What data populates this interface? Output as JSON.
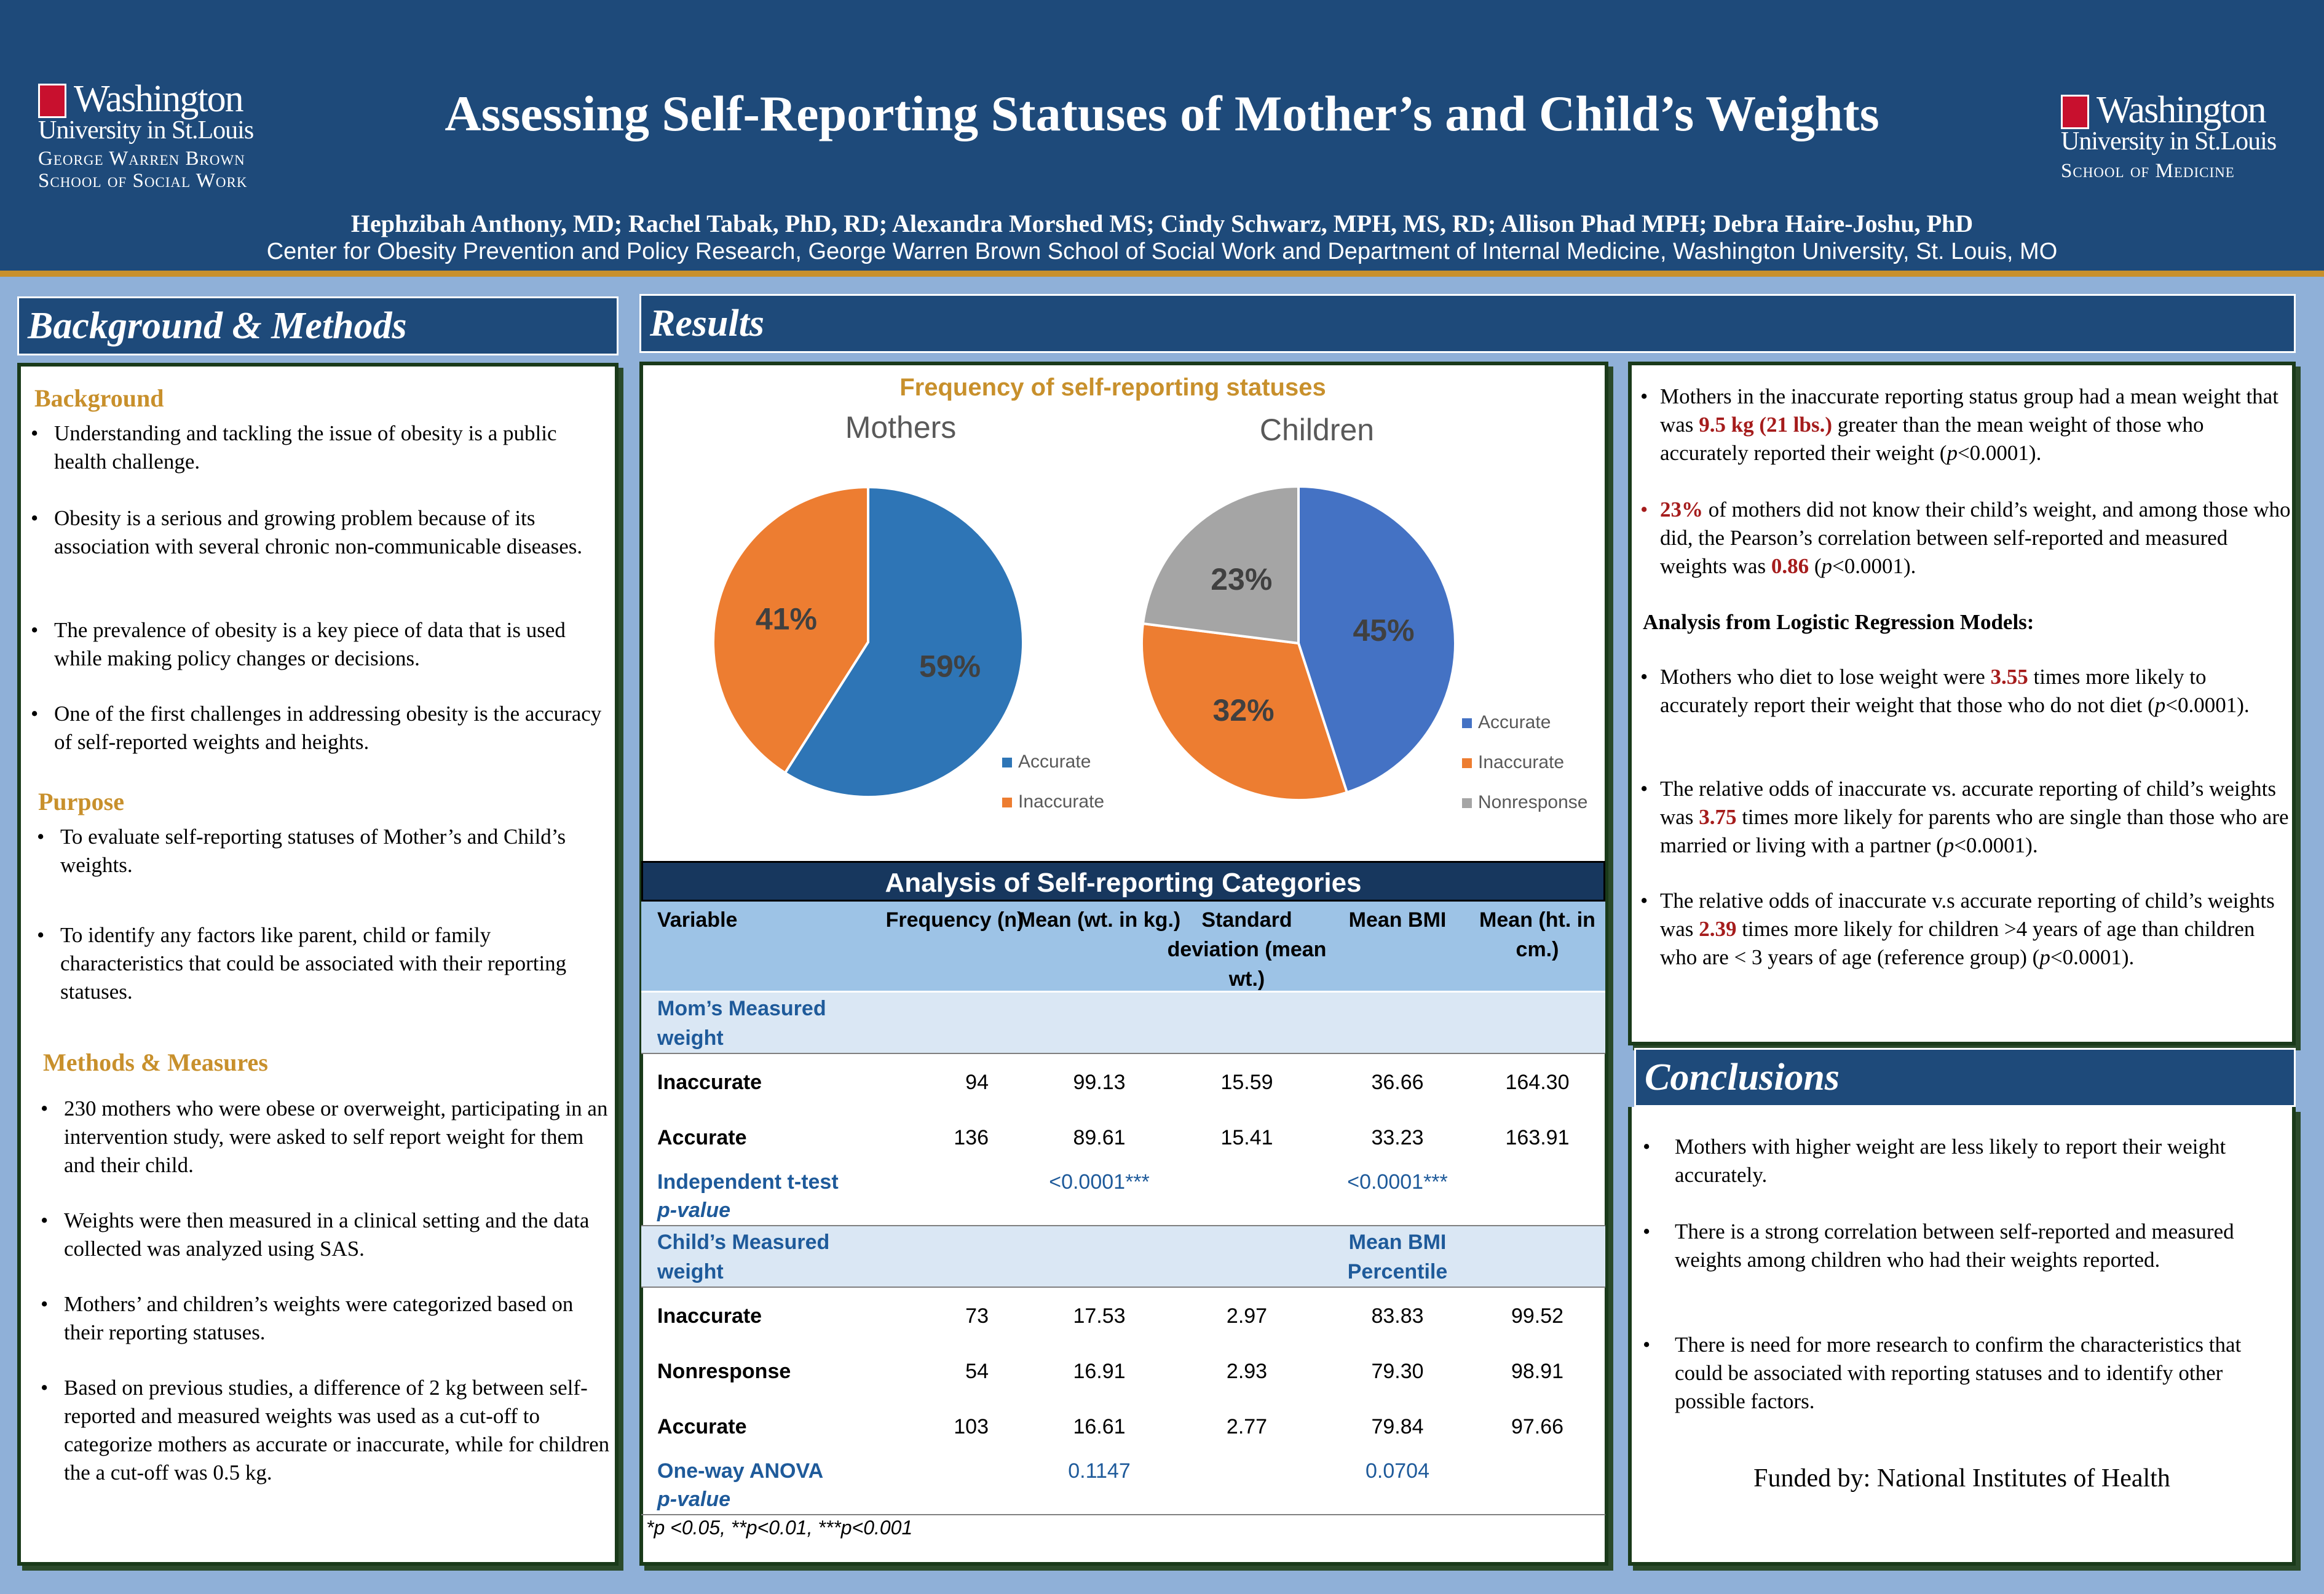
{
  "header": {
    "title": "Assessing Self-Reporting Statuses of Mother’s and Child’s Weights",
    "authors": "Hephzibah Anthony, MD; Rachel Tabak, PhD, RD; Alexandra Morshed MS; Cindy Schwarz, MPH, MS, RD; Allison Phad MPH; Debra Haire-Joshu, PhD",
    "affiliation": "Center for Obesity Prevention and Policy Research, George Warren Brown School of Social Work and Department of Internal Medicine, Washington University, St. Louis, MO",
    "logo_left": {
      "line1": "Washington",
      "line2": "University in St.Louis",
      "line3": "George Warren Brown",
      "line4": "School of Social Work"
    },
    "logo_right": {
      "line1": "Washington",
      "line2": "University in St.Louis",
      "line3": "School of Medicine"
    }
  },
  "sections": {
    "background_methods": "Background & Methods",
    "results": "Results",
    "conclusions": "Conclusions"
  },
  "left": {
    "background_head": "Background",
    "background": [
      "Understanding and tackling the issue of obesity is a public health challenge.",
      "Obesity is a serious and growing problem because of its association with several chronic non-communicable diseases.",
      "The prevalence of obesity is a key piece of data that is used while making policy changes or decisions.",
      "One of the first challenges in addressing obesity is the accuracy of self-reported weights and heights."
    ],
    "purpose_head": "Purpose",
    "purpose": [
      "To evaluate self-reporting statuses of Mother’s and Child’s weights.",
      "To identify any factors like parent, child or family characteristics that could be associated with their reporting statuses."
    ],
    "methods_head": "Methods & Measures",
    "methods": [
      "230 mothers who were obese or overweight, participating in an intervention study, were asked to self report weight for them and their child.",
      "Weights were then measured in a clinical setting and the data collected was analyzed using SAS.",
      "Mothers’ and children’s weights were categorized based on their reporting statuses.",
      "Based on previous studies, a difference of 2 kg between self-reported and measured weights was used as a cut-off to categorize mothers as accurate or inaccurate, while for children the a cut-off was 0.5 kg."
    ]
  },
  "chart_data": [
    {
      "type": "pie",
      "title": "Frequency of self-reporting statuses",
      "subtitle": "Mothers",
      "labels": [
        "Accurate",
        "Inaccurate"
      ],
      "values": [
        59,
        41
      ],
      "value_labels": [
        "59%",
        "41%"
      ],
      "colors": [
        "#2e75b6",
        "#ed7d31"
      ],
      "legend": "bottom-right"
    },
    {
      "type": "pie",
      "subtitle": "Children",
      "labels": [
        "Accurate",
        "Inaccurate",
        "Nonresponse"
      ],
      "values": [
        45,
        32,
        23
      ],
      "value_labels": [
        "45%",
        "32%",
        "23%"
      ],
      "colors": [
        "#4472c4",
        "#ed7d31",
        "#a5a5a5"
      ],
      "legend": "bottom-right"
    },
    {
      "type": "table",
      "title": "Analysis of Self-reporting Categories",
      "headers": [
        "Variable",
        "Frequency (n)",
        "Mean (wt. in kg.)",
        "Standard deviation (mean wt.)",
        "Mean BMI",
        "Mean (ht. in cm.)"
      ],
      "mom_label": "Mom’s Measured weight",
      "mom_rows": [
        [
          "Inaccurate",
          "94",
          "99.13",
          "15.59",
          "36.66",
          "164.30"
        ],
        [
          "Accurate",
          "136",
          "89.61",
          "15.41",
          "33.23",
          "163.91"
        ]
      ],
      "mom_test": [
        "Independent t-test",
        "p-value",
        "<0.0001***",
        "<0.0001***"
      ],
      "child_label": "Child’s Measured weight",
      "child_bmi_label": "Mean BMI Percentile",
      "child_rows": [
        [
          "Inaccurate",
          "73",
          "17.53",
          "2.97",
          "83.83",
          "99.52"
        ],
        [
          "Nonresponse",
          "54",
          "16.91",
          "2.93",
          "79.30",
          "98.91"
        ],
        [
          "Accurate",
          "103",
          "16.61",
          "2.77",
          "79.84",
          "97.66"
        ]
      ],
      "child_test": [
        "One-way ANOVA",
        "p-value",
        "0.1147",
        "0.0704"
      ],
      "footnote": "*p <0.05, **p<0.01, ***p<0.001"
    }
  ],
  "colors": {
    "navy": "#1e4a7a",
    "gold": "#c8902c",
    "highlight_red": "#a51c1c"
  },
  "right": {
    "bullets": [
      [
        "Mothers in the inaccurate reporting status group had a mean weight that was ",
        "9.5 kg (21 lbs.)",
        " greater than the mean weight of those who accurately reported their weight (",
        "p",
        "<0.0001)."
      ],
      [
        "",
        "23%",
        " of mothers did not know their child’s weight, and among those who did, the Pearson’s correlation between self-reported and measured weights was ",
        "0.86",
        " (",
        "p",
        "<0.0001)."
      ]
    ],
    "logistic_head": "Analysis from Logistic Regression Models:",
    "logistic": [
      [
        "Mothers who diet to lose weight were ",
        "3.55",
        " times more likely to accurately report their weight that those who do not diet (",
        "p",
        "<0.0001)."
      ],
      [
        "The relative odds of inaccurate vs. accurate reporting of child’s weights was ",
        "3.75",
        " times more likely for parents who are single than those who are married or living with a partner (",
        "p",
        "<0.0001)."
      ],
      [
        "The relative odds of inaccurate v.s accurate reporting of child’s weights was ",
        "2.39",
        " times more likely for children >4 years of age than children who are < 3 years of age (reference group) (",
        "p",
        "<0.0001)."
      ]
    ],
    "conclusions": [
      "Mothers with higher weight are less likely to report their weight accurately.",
      "There is a strong correlation between self-reported and measured weights among children who had their weights reported.",
      "There is need for more research to confirm the characteristics that could be associated with reporting statuses and to identify other possible factors."
    ],
    "funded": "Funded by: National Institutes of Health"
  }
}
